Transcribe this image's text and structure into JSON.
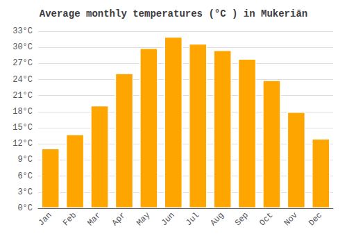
{
  "chart_data": {
    "type": "bar",
    "title": "Average monthly temperatures (°C ) in Mukeriān",
    "categories": [
      "Jan",
      "Feb",
      "Mar",
      "Apr",
      "May",
      "Jun",
      "Jul",
      "Aug",
      "Sep",
      "Oct",
      "Nov",
      "Dec"
    ],
    "values": [
      11.2,
      13.8,
      19.2,
      25.2,
      29.9,
      32.0,
      30.7,
      29.5,
      27.9,
      23.9,
      18.0,
      13.0
    ],
    "color": "#FFA500",
    "ylim": [
      0,
      33
    ],
    "yticks": [
      {
        "value": 0,
        "label": "0°C"
      },
      {
        "value": 3,
        "label": "3°C"
      },
      {
        "value": 6,
        "label": "6°C"
      },
      {
        "value": 9,
        "label": "9°C"
      },
      {
        "value": 12,
        "label": "12°C"
      },
      {
        "value": 15,
        "label": "15°C"
      },
      {
        "value": 18,
        "label": "18°C"
      },
      {
        "value": 21,
        "label": "21°C"
      },
      {
        "value": 24,
        "label": "24°C"
      },
      {
        "value": 27,
        "label": "27°C"
      },
      {
        "value": 30,
        "label": "30°C"
      },
      {
        "value": 33,
        "label": "33°C"
      }
    ],
    "grid": true
  }
}
